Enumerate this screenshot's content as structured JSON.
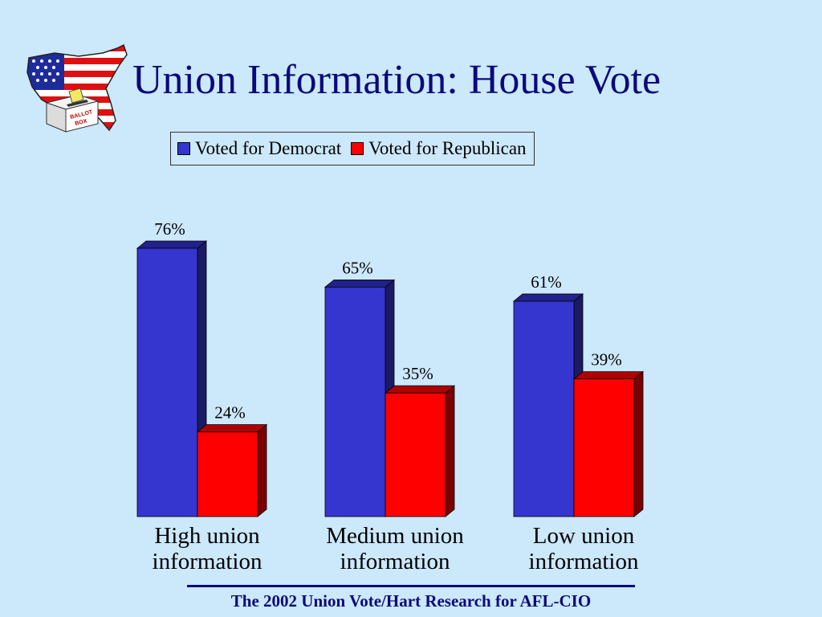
{
  "slide": {
    "title": "Union Information: House Vote",
    "footer": "The 2002 Union Vote/Hart Research for AFL-CIO",
    "logo_text_1": "BALLOT",
    "logo_text_2": "BOX"
  },
  "colors": {
    "background": "#cce8fb",
    "title": "#0a0a7a",
    "democrat": "#3535d0",
    "republican": "#ff0000"
  },
  "chart_data": {
    "type": "bar",
    "categories": [
      "High union information",
      "Medium union information",
      "Low union information"
    ],
    "category_lines": [
      [
        "High union",
        "information"
      ],
      [
        "Medium union",
        "information"
      ],
      [
        "Low union",
        "information"
      ]
    ],
    "series": [
      {
        "name": "Voted for Democrat",
        "values": [
          76,
          65,
          61
        ],
        "labels": [
          "76%",
          "65%",
          "61%"
        ],
        "color": "#3535d0"
      },
      {
        "name": "Voted for Republican",
        "values": [
          24,
          35,
          39
        ],
        "labels": [
          "24%",
          "35%",
          "39%"
        ],
        "color": "#ff0000"
      }
    ],
    "ylim": [
      0,
      76
    ],
    "grid": false,
    "legend_position": "top",
    "title": "",
    "xlabel": "",
    "ylabel": ""
  }
}
